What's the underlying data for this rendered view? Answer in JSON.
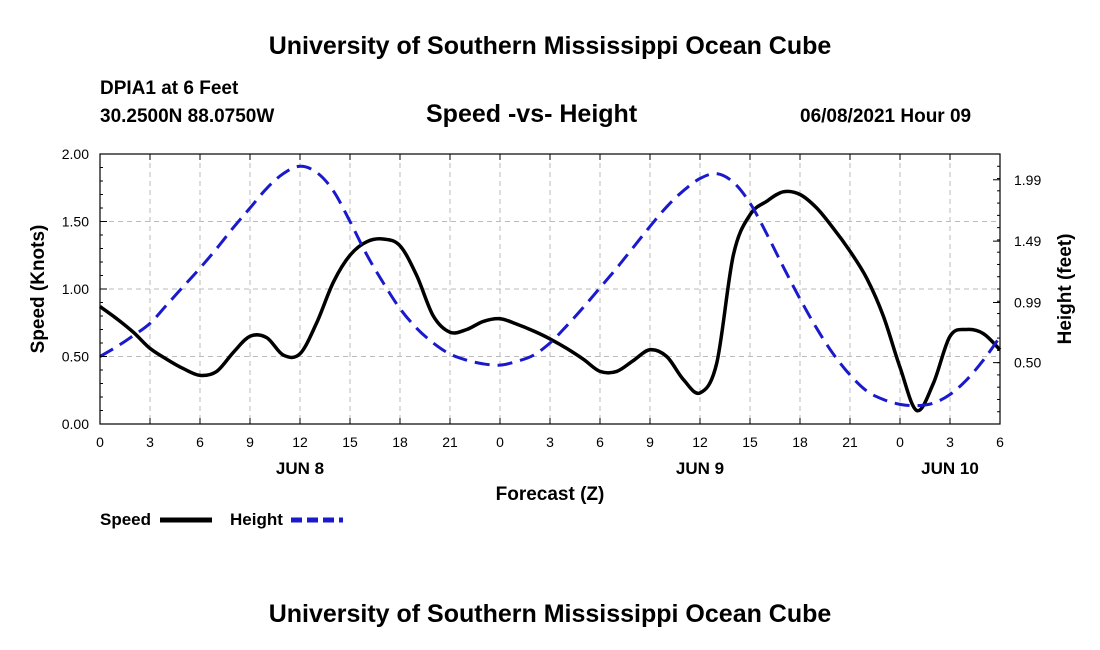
{
  "header": {
    "title": "University of Southern Mississippi Ocean Cube",
    "station": "DPIA1 at 6 Feet",
    "coords": "30.2500N  88.0750W",
    "subtitle": "Speed -vs- Height",
    "datetime": "06/08/2021 Hour 09"
  },
  "footer": {
    "title": "University of Southern Mississippi Ocean Cube"
  },
  "colors": {
    "speed": "#000000",
    "height": "#1a1acc",
    "grid": "#bbbbbb"
  },
  "chart_data": {
    "type": "line",
    "xlabel": "Forecast (Z)",
    "ylabel_left": "Speed (Knots)",
    "ylabel_right": "Height (feet)",
    "x_range_hours": [
      0,
      54
    ],
    "x_ticks": [
      0,
      3,
      6,
      9,
      12,
      15,
      18,
      21,
      24,
      27,
      30,
      33,
      36,
      39,
      42,
      45,
      48,
      51,
      54
    ],
    "x_tick_labels": [
      "0",
      "3",
      "6",
      "9",
      "12",
      "15",
      "18",
      "21",
      "0",
      "3",
      "6",
      "9",
      "12",
      "15",
      "18",
      "21",
      "0",
      "3",
      "6"
    ],
    "date_labels": [
      {
        "hour": 12,
        "label": "JUN 8"
      },
      {
        "hour": 36,
        "label": "JUN 9"
      },
      {
        "hour": 51,
        "label": "JUN 10"
      }
    ],
    "y_left": {
      "range": [
        0,
        2
      ],
      "ticks": [
        0,
        0.5,
        1.0,
        1.5,
        2.0
      ],
      "tick_labels": [
        "0.00",
        "0.50",
        "1.00",
        "1.50",
        "2.00"
      ]
    },
    "y_right": {
      "range": [
        0,
        2.2
      ],
      "ticks": [
        0.5,
        0.99,
        1.49,
        1.99
      ],
      "tick_labels": [
        "0.50",
        "0.99",
        "1.49",
        "1.99"
      ]
    },
    "series": [
      {
        "name": "Speed",
        "axis": "left",
        "style": "solid",
        "points": [
          [
            0,
            0.87
          ],
          [
            1,
            0.78
          ],
          [
            2,
            0.68
          ],
          [
            3,
            0.56
          ],
          [
            4,
            0.48
          ],
          [
            5,
            0.41
          ],
          [
            6,
            0.36
          ],
          [
            7,
            0.39
          ],
          [
            8,
            0.53
          ],
          [
            9,
            0.65
          ],
          [
            10,
            0.64
          ],
          [
            11,
            0.51
          ],
          [
            12,
            0.52
          ],
          [
            13,
            0.75
          ],
          [
            14,
            1.05
          ],
          [
            15,
            1.25
          ],
          [
            16,
            1.35
          ],
          [
            17,
            1.37
          ],
          [
            18,
            1.32
          ],
          [
            19,
            1.1
          ],
          [
            20,
            0.8
          ],
          [
            21,
            0.68
          ],
          [
            22,
            0.7
          ],
          [
            23,
            0.76
          ],
          [
            24,
            0.78
          ],
          [
            25,
            0.74
          ],
          [
            26,
            0.69
          ],
          [
            27,
            0.63
          ],
          [
            28,
            0.56
          ],
          [
            29,
            0.48
          ],
          [
            30,
            0.39
          ],
          [
            31,
            0.39
          ],
          [
            32,
            0.47
          ],
          [
            33,
            0.55
          ],
          [
            34,
            0.5
          ],
          [
            35,
            0.33
          ],
          [
            36,
            0.23
          ],
          [
            37,
            0.45
          ],
          [
            38,
            1.25
          ],
          [
            39,
            1.55
          ],
          [
            40,
            1.65
          ],
          [
            41,
            1.72
          ],
          [
            42,
            1.7
          ],
          [
            43,
            1.6
          ],
          [
            44,
            1.45
          ],
          [
            45,
            1.28
          ],
          [
            46,
            1.08
          ],
          [
            47,
            0.8
          ],
          [
            48,
            0.42
          ],
          [
            49,
            0.1
          ],
          [
            50,
            0.3
          ],
          [
            51,
            0.65
          ],
          [
            52,
            0.7
          ],
          [
            53,
            0.67
          ],
          [
            54,
            0.55
          ]
        ]
      },
      {
        "name": "Height",
        "axis": "right",
        "style": "dashed",
        "points": [
          [
            0,
            0.55
          ],
          [
            1,
            0.63
          ],
          [
            2,
            0.72
          ],
          [
            3,
            0.82
          ],
          [
            4,
            0.97
          ],
          [
            5,
            1.12
          ],
          [
            6,
            1.27
          ],
          [
            7,
            1.43
          ],
          [
            8,
            1.6
          ],
          [
            9,
            1.76
          ],
          [
            10,
            1.92
          ],
          [
            11,
            2.04
          ],
          [
            12,
            2.1
          ],
          [
            13,
            2.05
          ],
          [
            14,
            1.9
          ],
          [
            15,
            1.65
          ],
          [
            16,
            1.38
          ],
          [
            17,
            1.15
          ],
          [
            18,
            0.94
          ],
          [
            19,
            0.78
          ],
          [
            20,
            0.66
          ],
          [
            21,
            0.57
          ],
          [
            22,
            0.52
          ],
          [
            23,
            0.49
          ],
          [
            24,
            0.48
          ],
          [
            25,
            0.51
          ],
          [
            26,
            0.56
          ],
          [
            27,
            0.66
          ],
          [
            28,
            0.8
          ],
          [
            29,
            0.95
          ],
          [
            30,
            1.11
          ],
          [
            31,
            1.27
          ],
          [
            32,
            1.44
          ],
          [
            33,
            1.61
          ],
          [
            34,
            1.77
          ],
          [
            35,
            1.9
          ],
          [
            36,
            2.0
          ],
          [
            37,
            2.04
          ],
          [
            38,
            1.97
          ],
          [
            39,
            1.8
          ],
          [
            40,
            1.55
          ],
          [
            41,
            1.28
          ],
          [
            42,
            1.02
          ],
          [
            43,
            0.78
          ],
          [
            44,
            0.57
          ],
          [
            45,
            0.4
          ],
          [
            46,
            0.27
          ],
          [
            47,
            0.2
          ],
          [
            48,
            0.16
          ],
          [
            49,
            0.15
          ],
          [
            50,
            0.17
          ],
          [
            51,
            0.24
          ],
          [
            52,
            0.36
          ],
          [
            53,
            0.52
          ],
          [
            54,
            0.71
          ]
        ]
      }
    ],
    "legend": [
      {
        "label": "Speed",
        "style": "solid"
      },
      {
        "label": "Height",
        "style": "dashed"
      }
    ]
  }
}
